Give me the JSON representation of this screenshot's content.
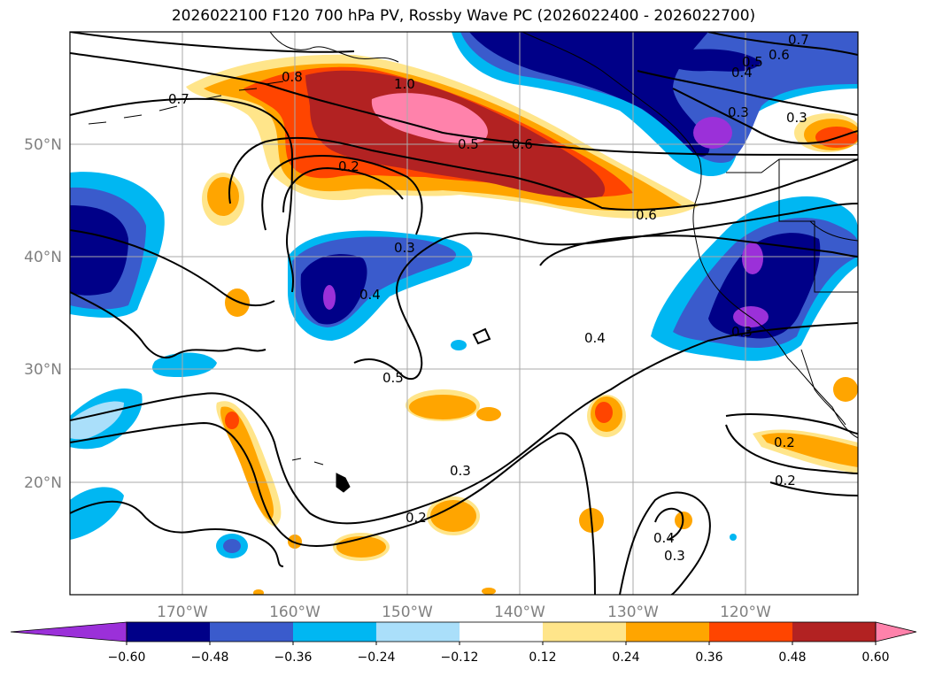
{
  "title": "2026022100 F120 700 hPa PV, Rossby Wave PC (2026022400 - 2026022700)",
  "lat_labels": [
    "50°N",
    "40°N",
    "30°N",
    "20°N"
  ],
  "lon_labels": [
    "170°W",
    "160°W",
    "150°W",
    "140°W",
    "130°W",
    "120°W"
  ],
  "colorbar": {
    "ticks": [
      "−0.60",
      "−0.48",
      "−0.36",
      "−0.24",
      "−0.12",
      "0.12",
      "0.24",
      "0.36",
      "0.48",
      "0.60"
    ],
    "colors": [
      "#9b30d9",
      "#000088",
      "#3a5bcc",
      "#00b7f2",
      "#aadffa",
      "#ffffff",
      "#ffe58a",
      "#ffa500",
      "#ff4500",
      "#b22222",
      "#ff82ab"
    ]
  },
  "contour_labels": [
    {
      "text": "0.7"
    },
    {
      "text": "0.8"
    },
    {
      "text": "1.0"
    },
    {
      "text": "0.5"
    },
    {
      "text": "0.6"
    },
    {
      "text": "0.2"
    },
    {
      "text": "0.6"
    },
    {
      "text": "0.3"
    },
    {
      "text": "0.4"
    },
    {
      "text": "0.5"
    },
    {
      "text": "0.4"
    },
    {
      "text": "0.3"
    },
    {
      "text": "0.2"
    },
    {
      "text": "0.4"
    },
    {
      "text": "0.3"
    },
    {
      "text": "0.7"
    },
    {
      "text": "0.6"
    },
    {
      "text": "0.5"
    },
    {
      "text": "0.4"
    },
    {
      "text": "0.3"
    },
    {
      "text": "0.3"
    },
    {
      "text": "0.2"
    },
    {
      "text": "0.3"
    },
    {
      "text": "0.2"
    }
  ],
  "colors": {
    "grid": "#aaaaaa",
    "axis_label": "#808080"
  }
}
